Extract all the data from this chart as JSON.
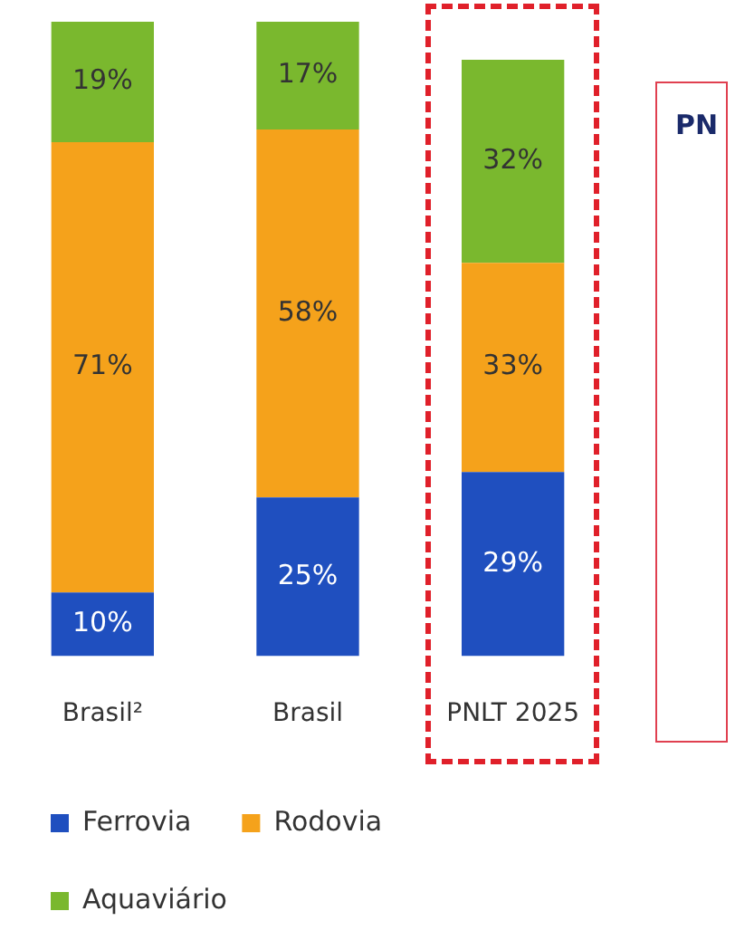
{
  "chart_data": {
    "type": "bar",
    "stacked": true,
    "tick_labels": "x",
    "grid": false,
    "legend": "bottom",
    "categories": [
      "Brasil²",
      "Brasil",
      "PNLT 2025"
    ],
    "series": [
      {
        "name": "Ferrovia",
        "color": "#1f4fbf",
        "values": [
          10,
          25,
          29
        ],
        "value_labels": [
          "10%",
          "25%",
          "29%"
        ]
      },
      {
        "name": "Rodovia",
        "color": "#f5a21b",
        "values": [
          71,
          58,
          33
        ],
        "value_labels": [
          "71%",
          "58%",
          "33%"
        ]
      },
      {
        "name": "Aquaviário",
        "color": "#7ab82e",
        "values": [
          19,
          17,
          32
        ],
        "value_labels": [
          "19%",
          "17%",
          "32%"
        ]
      }
    ],
    "annotations": [
      "PN"
    ]
  }
}
